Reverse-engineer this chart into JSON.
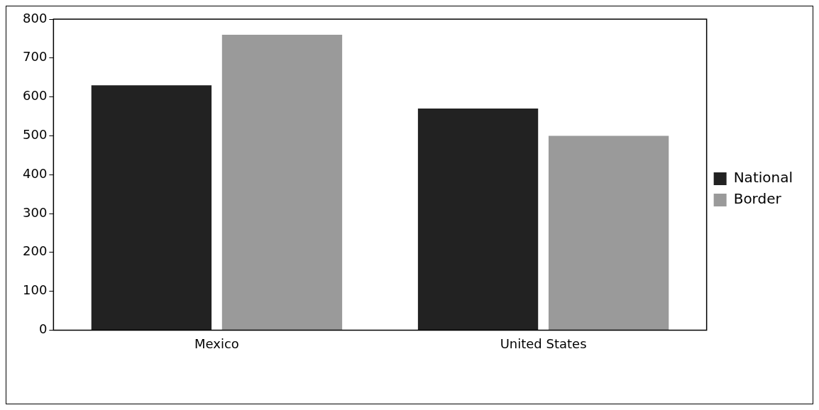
{
  "chart_data": {
    "type": "bar",
    "categories": [
      "Mexico",
      "United States"
    ],
    "series": [
      {
        "name": "National",
        "color": "#222222",
        "values": [
          630,
          570
        ]
      },
      {
        "name": "Border",
        "color": "#9a9a9a",
        "values": [
          760,
          500
        ]
      }
    ],
    "ylim": [
      0,
      800
    ],
    "yticks": [
      0,
      100,
      200,
      300,
      400,
      500,
      600,
      700,
      800
    ],
    "grid": false,
    "legend": "right"
  }
}
